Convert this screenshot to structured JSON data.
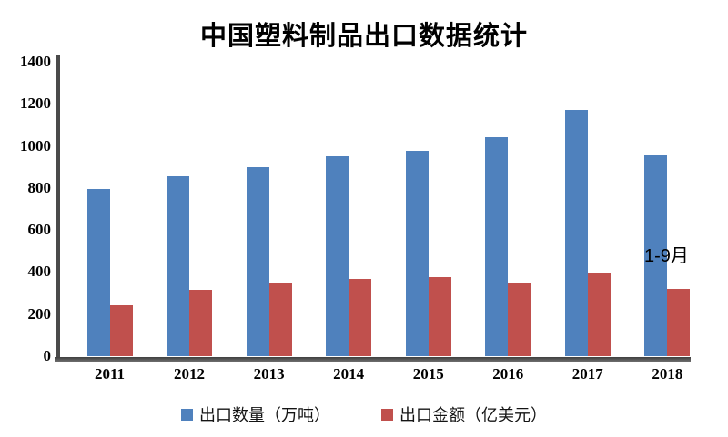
{
  "title": "中国塑料制品出口数据统计",
  "annotation": "1-9月",
  "legend": {
    "items": [
      {
        "label": "出口数量（万吨）",
        "color": "#4F81BD"
      },
      {
        "label": "出口金额（亿美元）",
        "color": "#C0504D"
      }
    ]
  },
  "colors": {
    "axis": "#4a4a4a",
    "series_blue": "#4F81BD",
    "series_red": "#C0504D"
  },
  "chart_data": {
    "type": "bar",
    "title": "中国塑料制品出口数据统计",
    "categories": [
      "2011",
      "2012",
      "2013",
      "2014",
      "2015",
      "2016",
      "2017",
      "2018"
    ],
    "series": [
      {
        "name": "出口数量（万吨）",
        "color": "#4F81BD",
        "values": [
          795,
          855,
          900,
          950,
          975,
          1040,
          1170,
          955
        ]
      },
      {
        "name": "出口金额（亿美元）",
        "color": "#C0504D",
        "values": [
          240,
          315,
          352,
          367,
          375,
          352,
          398,
          320
        ]
      }
    ],
    "xlabel": "",
    "ylabel": "",
    "ylim": [
      0,
      1400
    ],
    "y_ticks": [
      0,
      200,
      400,
      600,
      800,
      1000,
      1200,
      1400
    ],
    "grid": false,
    "legend_position": "bottom",
    "annotation": {
      "text": "1-9月",
      "target_category": "2018",
      "note": "2018 data covers Jan-Sep only"
    }
  }
}
